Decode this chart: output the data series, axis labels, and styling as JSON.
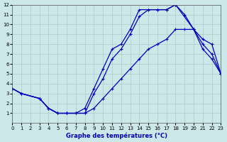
{
  "xlabel": "Graphe des températures (°C)",
  "xlim": [
    0,
    23
  ],
  "ylim": [
    0,
    12
  ],
  "xticks": [
    0,
    1,
    2,
    3,
    4,
    5,
    6,
    7,
    8,
    9,
    10,
    11,
    12,
    13,
    14,
    15,
    16,
    17,
    18,
    19,
    20,
    21,
    22,
    23
  ],
  "yticks": [
    1,
    2,
    3,
    4,
    5,
    6,
    7,
    8,
    9,
    10,
    11,
    12
  ],
  "bg_color": "#cce8e8",
  "line_color": "#0000bb",
  "grid_color": "#aacccc",
  "line1_x": [
    0,
    1,
    3,
    4,
    5,
    6,
    7,
    8,
    9,
    10,
    11,
    12,
    13,
    14,
    15,
    16,
    17,
    18,
    19,
    20,
    21,
    22,
    23
  ],
  "line1_y": [
    3.5,
    3.0,
    2.5,
    1.5,
    1.0,
    1.0,
    1.0,
    1.0,
    3.0,
    4.5,
    6.5,
    7.5,
    9.0,
    10.8,
    11.5,
    11.5,
    11.5,
    12.0,
    11.0,
    9.5,
    7.5,
    6.5,
    5.0
  ],
  "line2_x": [
    0,
    1,
    3,
    4,
    5,
    6,
    7,
    8,
    9,
    10,
    11,
    12,
    13,
    14,
    15,
    16,
    17,
    18,
    20,
    21,
    22,
    23
  ],
  "line2_y": [
    3.5,
    3.0,
    2.5,
    1.5,
    1.0,
    1.0,
    1.0,
    1.5,
    3.5,
    5.5,
    7.5,
    8.0,
    9.5,
    11.5,
    11.5,
    11.5,
    11.5,
    12.0,
    9.5,
    8.0,
    7.0,
    5.0
  ],
  "line3_x": [
    0,
    1,
    3,
    4,
    5,
    6,
    7,
    8,
    9,
    10,
    11,
    12,
    13,
    14,
    15,
    16,
    17,
    18,
    19,
    20,
    21,
    22,
    23
  ],
  "line3_y": [
    3.5,
    3.0,
    2.5,
    1.5,
    1.0,
    1.0,
    1.0,
    1.0,
    1.5,
    2.5,
    3.5,
    4.5,
    5.5,
    6.5,
    7.5,
    8.0,
    8.5,
    9.5,
    9.5,
    9.5,
    8.5,
    8.0,
    5.0
  ]
}
